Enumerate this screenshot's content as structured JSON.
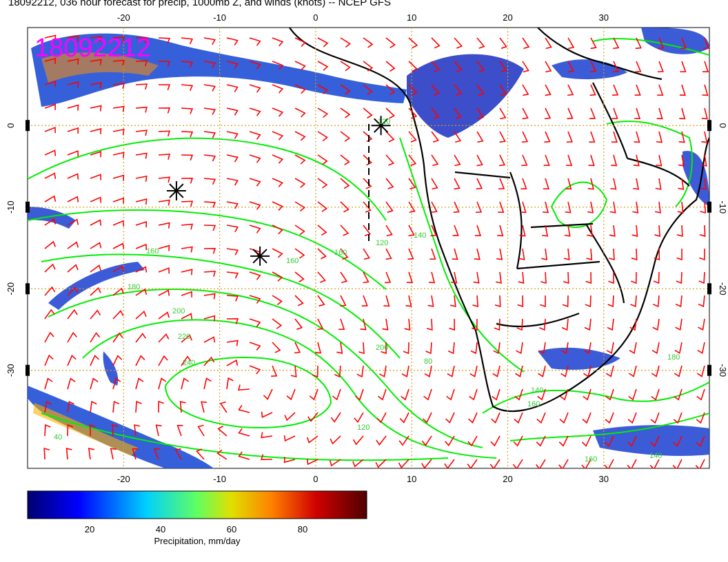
{
  "title": "18092212, 036 hour forecast for precip, 1000mb Z, and winds (knots) -- NCEP GFS",
  "stamp": "18092212",
  "axes": {
    "x_ticks": [
      "-20",
      "-10",
      "0",
      "10",
      "20",
      "30"
    ],
    "y_ticks": [
      "0",
      "-10",
      "-20",
      "-30"
    ]
  },
  "contour_labels": [
    "120",
    "160",
    "180",
    "200",
    "220",
    "240",
    "120",
    "140",
    "160",
    "200",
    "140",
    "160",
    "180",
    "140",
    "160",
    "120",
    "80",
    "40",
    "160"
  ],
  "colorbar": {
    "label": "Precipitation, mm/day",
    "ticks": [
      "20",
      "40",
      "60",
      "80"
    ],
    "colors": [
      "#000080",
      "#0000ff",
      "#00c8ff",
      "#80ff80",
      "#ffff00",
      "#ff8000",
      "#c00000",
      "#600000"
    ]
  },
  "colors": {
    "wind_barb": "#ff0000",
    "contour": "#00ff00",
    "grid": "#d4a017",
    "stamp": "#ff00ff"
  },
  "markers": [
    {
      "lon": -14.5,
      "lat": -8
    },
    {
      "lon": -5.8,
      "lat": -16
    },
    {
      "lon": 6.8,
      "lat": 0
    }
  ]
}
